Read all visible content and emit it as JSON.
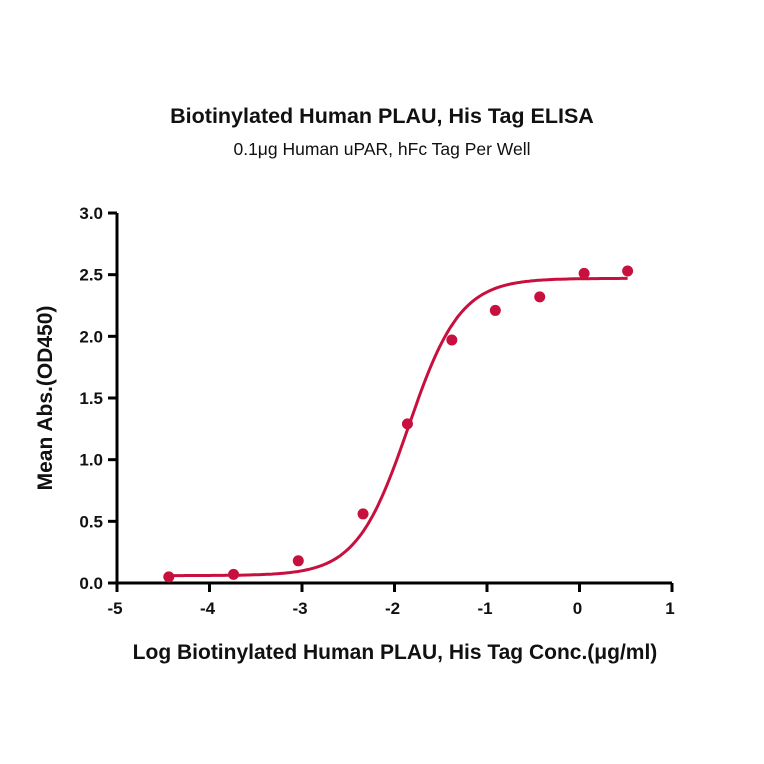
{
  "chart_data": {
    "type": "scatter",
    "title": "Biotinylated Human  PLAU, His Tag ELISA",
    "subtitle": "0.1μg Human uPAR, hFc Tag Per Well",
    "xlabel": "Log Biotinylated Human  PLAU, His Tag Conc.(μg/ml)",
    "ylabel": "Mean Abs.(OD450)",
    "xlim": [
      -5,
      1
    ],
    "ylim": [
      0,
      3.0
    ],
    "xticks": [
      "-5",
      "-4",
      "-3",
      "-2",
      "-1",
      "0",
      "1"
    ],
    "yticks": [
      "0.0",
      "0.5",
      "1.0",
      "1.5",
      "2.0",
      "2.5",
      "3.0"
    ],
    "grid": false,
    "legend": null,
    "color": "#C8103E",
    "series": [
      {
        "name": "Biotinylated Human PLAU, His Tag",
        "x": [
          -4.44,
          -3.74,
          -3.04,
          -2.34,
          -1.86,
          -1.38,
          -0.91,
          -0.43,
          0.05,
          0.52
        ],
        "y": [
          0.05,
          0.07,
          0.18,
          0.56,
          1.29,
          1.97,
          2.21,
          2.32,
          2.51,
          2.53
        ],
        "fit": "4-parameter logistic"
      }
    ]
  }
}
